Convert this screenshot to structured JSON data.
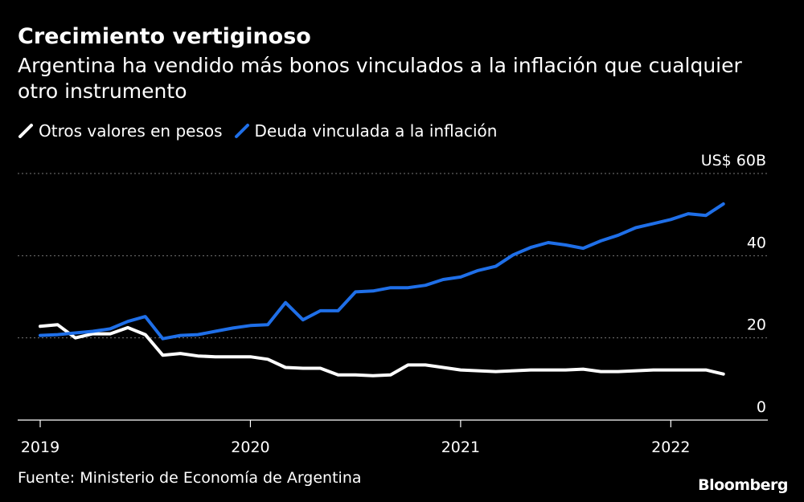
{
  "title": "Crecimiento vertiginoso",
  "subtitle": "Argentina ha vendido más bonos vinculados a la inflación que cualquier otro instrumento",
  "source": "Fuente: Ministerio de Economía de Argentina",
  "brand": "Bloomberg",
  "colors": {
    "background": "#000000",
    "white_series": "#ffffff",
    "blue_series": "#1f6fe8",
    "grid": "#777777"
  },
  "legend": [
    {
      "label": "Otros valores en pesos",
      "color": "#ffffff"
    },
    {
      "label": "Deuda vinculada a la inflación",
      "color": "#1f6fe8"
    }
  ],
  "chart_data": {
    "type": "line",
    "title": "Crecimiento vertiginoso",
    "subtitle": "Argentina ha vendido más bonos vinculados a la inflación que cualquier otro instrumento",
    "xlabel": "",
    "ylabel": "",
    "x_ticks": [
      "2019",
      "2020",
      "2021",
      "2022"
    ],
    "y_ticks": [
      {
        "value": 0,
        "label": "0"
      },
      {
        "value": 20,
        "label": "20"
      },
      {
        "value": 40,
        "label": "40"
      },
      {
        "value": 60,
        "label": "US$ 60B"
      }
    ],
    "ylim": [
      0,
      60
    ],
    "xlim": [
      2019.0,
      2022.45
    ],
    "grid": true,
    "legend_position": "top-left",
    "x": [
      2019.0,
      2019.083,
      2019.167,
      2019.25,
      2019.333,
      2019.417,
      2019.5,
      2019.583,
      2019.667,
      2019.75,
      2019.833,
      2019.917,
      2020.0,
      2020.083,
      2020.167,
      2020.25,
      2020.333,
      2020.417,
      2020.5,
      2020.583,
      2020.667,
      2020.75,
      2020.833,
      2020.917,
      2021.0,
      2021.083,
      2021.167,
      2021.25,
      2021.333,
      2021.417,
      2021.5,
      2021.583,
      2021.667,
      2021.75,
      2021.833,
      2021.917,
      2022.0,
      2022.083,
      2022.167,
      2022.25
    ],
    "series": [
      {
        "name": "Otros valores en pesos",
        "color": "#ffffff",
        "values": [
          22.8,
          23.2,
          20.0,
          21.0,
          21.0,
          22.5,
          20.8,
          15.8,
          16.2,
          15.6,
          15.4,
          15.4,
          15.4,
          14.8,
          12.8,
          12.6,
          12.6,
          11.0,
          11.0,
          10.8,
          11.0,
          13.4,
          13.4,
          12.8,
          12.2,
          12.0,
          11.8,
          12.0,
          12.2,
          12.2,
          12.2,
          12.4,
          11.8,
          11.8,
          12.0,
          12.2,
          12.2,
          12.2,
          12.2,
          11.2
        ]
      },
      {
        "name": "Deuda vinculada a la inflación",
        "color": "#1f6fe8",
        "values": [
          20.6,
          20.8,
          21.2,
          21.6,
          22.2,
          24.0,
          25.2,
          19.8,
          20.6,
          20.8,
          21.6,
          22.4,
          23.0,
          23.2,
          28.6,
          24.4,
          26.6,
          26.6,
          31.2,
          31.4,
          32.2,
          32.2,
          32.8,
          34.2,
          34.8,
          36.4,
          37.4,
          40.2,
          42.0,
          43.2,
          42.6,
          41.8,
          43.6,
          45.0,
          46.8,
          47.8,
          48.8,
          50.2,
          49.8,
          52.6
        ]
      }
    ]
  }
}
